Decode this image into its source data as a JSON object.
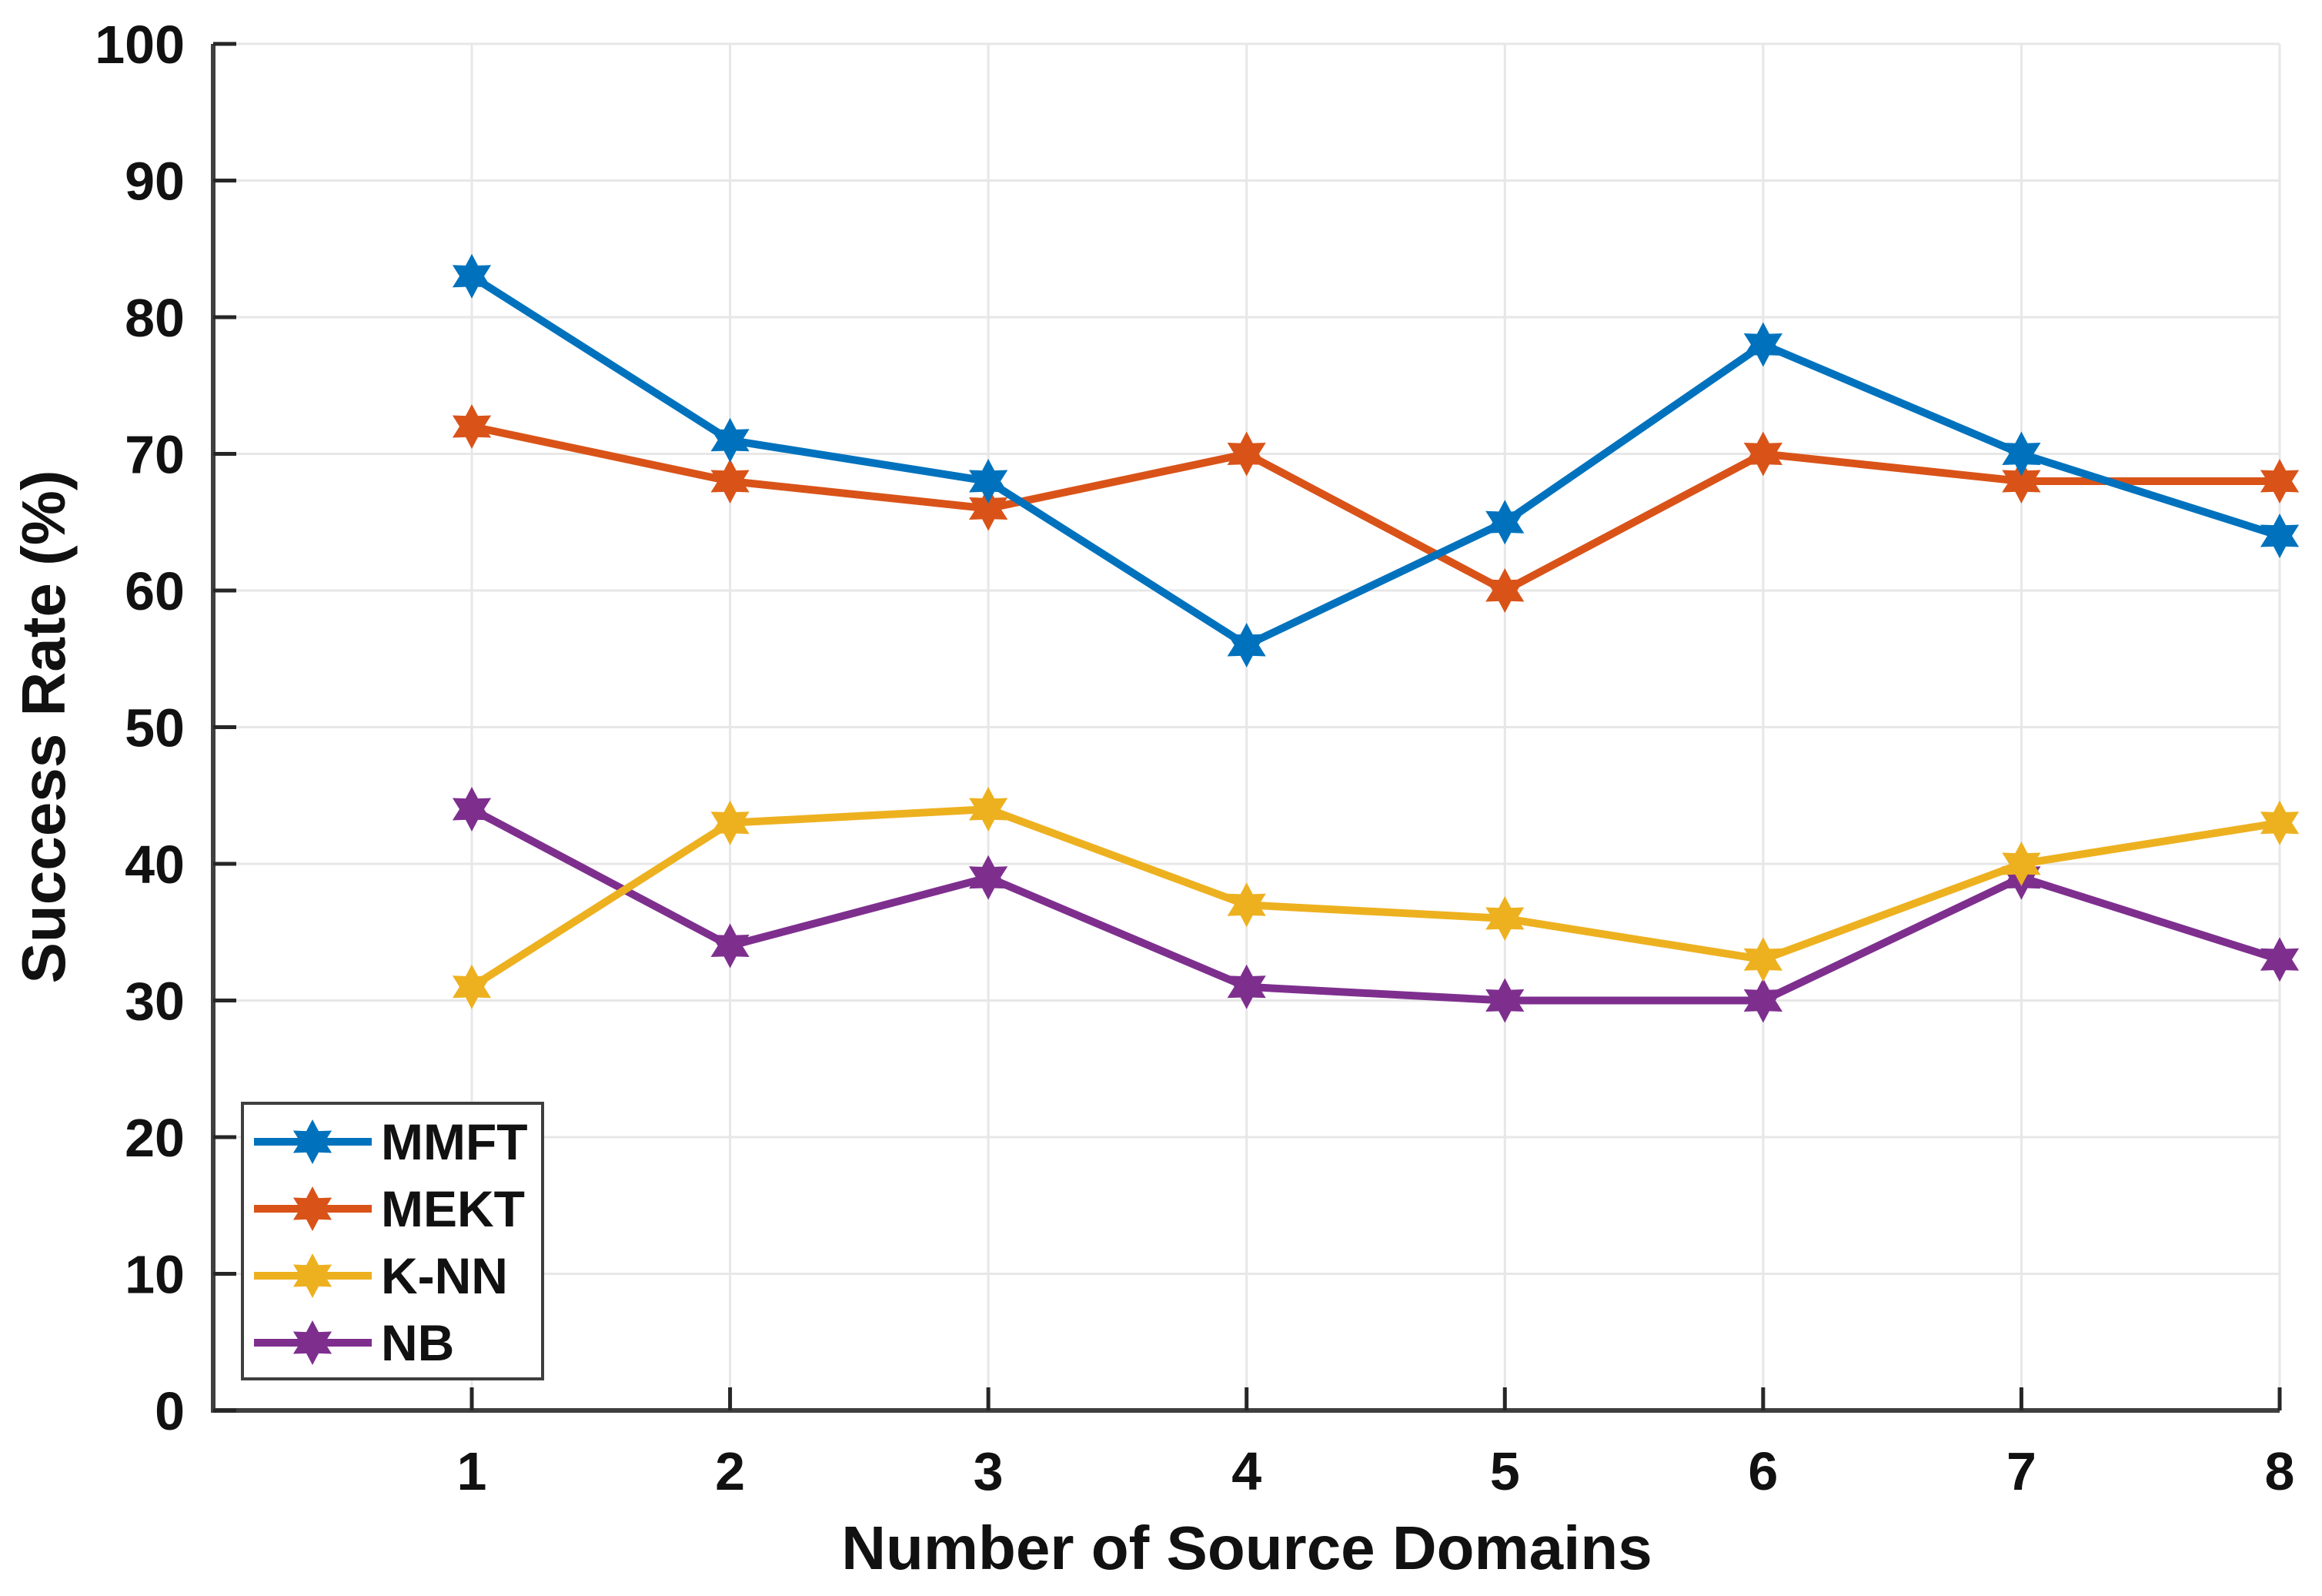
{
  "chart_data": {
    "type": "line",
    "title": "",
    "xlabel": "Number of Source Domains",
    "ylabel": "Success Rate (%)",
    "x": [
      1,
      2,
      3,
      4,
      5,
      6,
      7,
      8
    ],
    "series": [
      {
        "name": "MMFT",
        "color": "#0072BD",
        "values": [
          83,
          71,
          68,
          56,
          65,
          78,
          70,
          64
        ]
      },
      {
        "name": "MEKT",
        "color": "#D95319",
        "values": [
          72,
          68,
          66,
          70,
          60,
          70,
          68,
          68
        ]
      },
      {
        "name": "K-NN",
        "color": "#EDB120",
        "values": [
          31,
          43,
          44,
          37,
          36,
          33,
          40,
          43
        ]
      },
      {
        "name": "NB",
        "color": "#7E2F8E",
        "values": [
          44,
          34,
          39,
          31,
          30,
          30,
          39,
          33
        ]
      }
    ],
    "xticks": [
      1,
      2,
      3,
      4,
      5,
      6,
      7,
      8
    ],
    "yticks": [
      0,
      10,
      20,
      30,
      40,
      50,
      60,
      70,
      80,
      90,
      100
    ],
    "ylim": [
      0,
      100
    ],
    "xlim": [
      0.05,
      8
    ],
    "grid": true,
    "marker": "hexagram",
    "legend_position": "bottom-left",
    "legend_order": [
      "MMFT",
      "MEKT",
      "K-NN",
      "NB"
    ],
    "colors": {
      "axis": "#3f3f3f",
      "tick": "#262626",
      "grid": "#e7e7e7",
      "text": "#111111",
      "legend_border": "#3f3f3f",
      "background": "#ffffff"
    }
  }
}
